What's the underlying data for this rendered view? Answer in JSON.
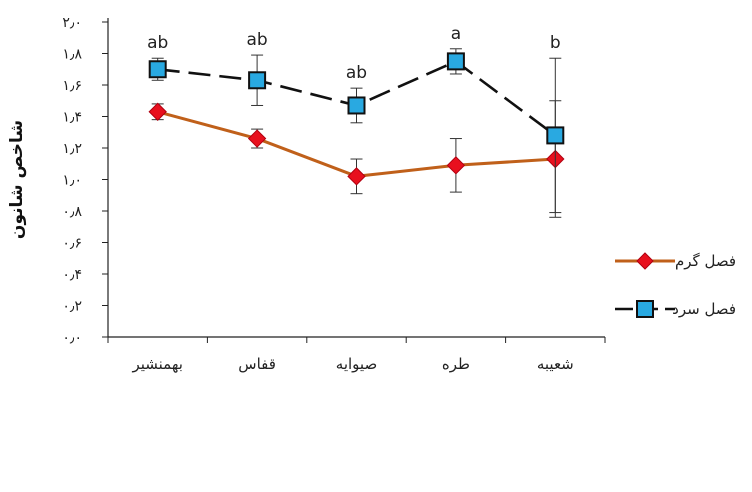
{
  "chart_data": {
    "type": "line",
    "ylabel": "شاخص شانون",
    "ylim": [
      0,
      2
    ],
    "y_ticks": [
      "۰٫۰",
      "۰٫۲",
      "۰٫۴",
      "۰٫۶",
      "۰٫۸",
      "۱٫۰",
      "۱٫۲",
      "۱٫۴",
      "۱٫۶",
      "۱٫۸",
      "۲٫۰"
    ],
    "y_tick_values": [
      0,
      0.2,
      0.4,
      0.6,
      0.8,
      1.0,
      1.2,
      1.4,
      1.6,
      1.8,
      2.0
    ],
    "categories": [
      "بهمنشیر",
      "قفاس",
      "صیوایه",
      "طره",
      "شعیبه"
    ],
    "series": [
      {
        "name": "فصل گرم",
        "color": "#c0601a",
        "marker": "diamond",
        "marker_color": "#e8101e",
        "line_style": "solid",
        "values": [
          1.43,
          1.26,
          1.02,
          1.09,
          1.13
        ],
        "error": [
          0.05,
          0.06,
          0.11,
          0.17,
          0.37
        ]
      },
      {
        "name": "فصل سرد",
        "color": "#111111",
        "marker": "square",
        "marker_color": "#29a9e1",
        "line_style": "dashed",
        "values": [
          1.7,
          1.63,
          1.47,
          1.75,
          1.28
        ],
        "error": [
          0.07,
          0.16,
          0.11,
          0.08,
          0.49
        ],
        "significance": [
          "ab",
          "ab",
          "ab",
          "a",
          "b"
        ]
      }
    ],
    "grid": false,
    "legend_position": "right"
  }
}
